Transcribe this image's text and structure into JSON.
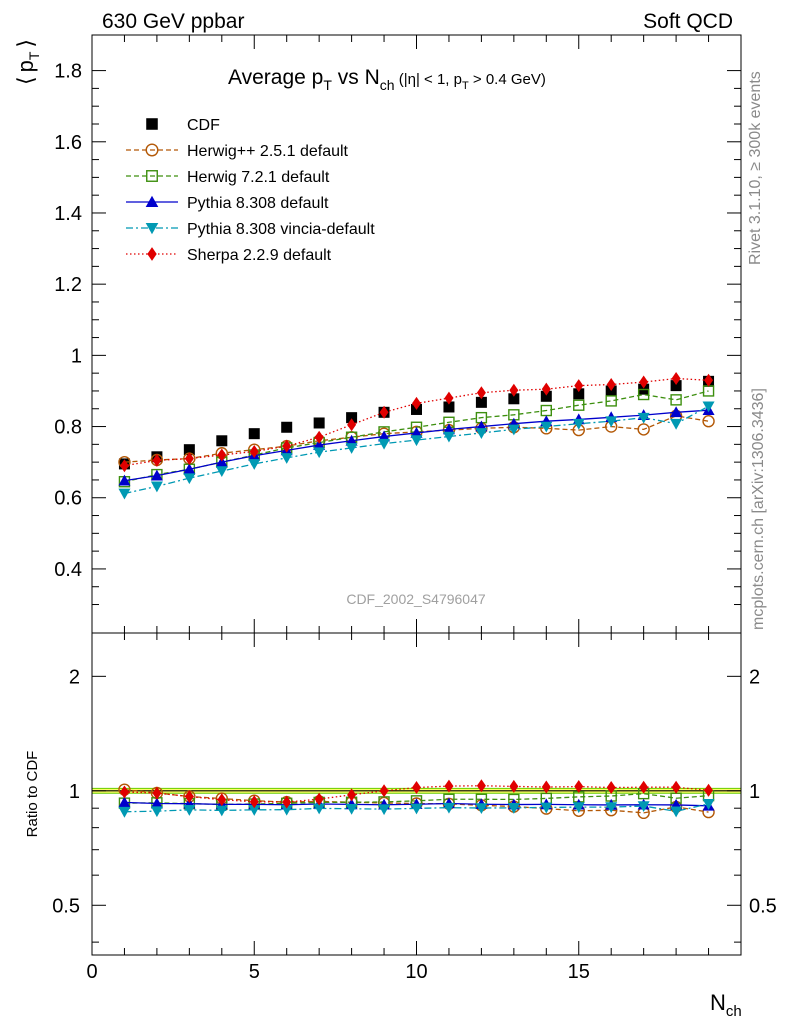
{
  "header": {
    "left": "630 GeV ppbar",
    "right": "Soft QCD"
  },
  "side_labels": {
    "rivet": "Rivet 3.1.10, ≥ 300k events",
    "mcplots": "mcplots.cern.ch [arXiv:1306.3436]"
  },
  "watermark": "CDF_2002_S4796047",
  "chart_data": [
    {
      "type": "scatter",
      "panel": "main",
      "title": "Average p_T vs N_ch (|η| < 1, p_T > 0.4 GeV)",
      "title_parts": {
        "a": "Average p",
        "a_sub": "T",
        "b": " vs N",
        "b_sub": "ch",
        "c": " (|η| < 1, p",
        "c_sub": "T",
        "d": " > 0.4 GeV)"
      },
      "ylabel": "⟨ p_T ⟩",
      "ylabel_parts": {
        "open": "⟨",
        "p": "p",
        "sub": "T",
        "close": "⟩"
      },
      "xlim": [
        0,
        20
      ],
      "ylim": [
        0.22,
        1.9
      ],
      "yticks": [
        0.4,
        0.6,
        0.8,
        1,
        1.2,
        1.4,
        1.6,
        1.8
      ],
      "ytick_labels": [
        "0.4",
        "0.6",
        "0.8",
        "1",
        "1.2",
        "1.4",
        "1.6",
        "1.8"
      ],
      "x": [
        1,
        2,
        3,
        4,
        5,
        6,
        7,
        8,
        9,
        10,
        11,
        12,
        13,
        14,
        15,
        16,
        17,
        18,
        19
      ],
      "legend_position": "top-left",
      "series": [
        {
          "name": "CDF",
          "color": "#000000",
          "marker": "square-filled",
          "line": "none",
          "values": [
            0.695,
            0.715,
            0.735,
            0.76,
            0.78,
            0.798,
            0.81,
            0.825,
            0.84,
            0.848,
            0.855,
            0.868,
            0.878,
            0.885,
            0.892,
            0.9,
            0.905,
            0.915,
            0.927
          ]
        },
        {
          "name": "Herwig++ 2.5.1 default",
          "color": "#b35806",
          "marker": "circle-open",
          "line": "dashed",
          "values": [
            0.7,
            0.706,
            0.71,
            0.725,
            0.735,
            0.745,
            0.76,
            0.77,
            0.78,
            0.785,
            0.79,
            0.795,
            0.798,
            0.795,
            0.79,
            0.8,
            0.792,
            0.83,
            0.815
          ]
        },
        {
          "name": "Herwig 7.2.1 default",
          "color": "#3d8f0f",
          "marker": "square-open",
          "line": "dashed",
          "values": [
            0.645,
            0.665,
            0.68,
            0.7,
            0.72,
            0.74,
            0.755,
            0.77,
            0.785,
            0.798,
            0.812,
            0.825,
            0.833,
            0.845,
            0.86,
            0.872,
            0.89,
            0.875,
            0.9
          ]
        },
        {
          "name": "Pythia 8.308 default",
          "color": "#0000cc",
          "marker": "triangle-up",
          "line": "solid",
          "values": [
            0.648,
            0.662,
            0.68,
            0.7,
            0.718,
            0.733,
            0.748,
            0.76,
            0.772,
            0.782,
            0.792,
            0.8,
            0.808,
            0.815,
            0.82,
            0.826,
            0.832,
            0.84,
            0.846
          ]
        },
        {
          "name": "Pythia 8.308 vincia-default",
          "color": "#0099b3",
          "marker": "triangle-down",
          "line": "dashdot",
          "values": [
            0.612,
            0.632,
            0.655,
            0.675,
            0.695,
            0.712,
            0.728,
            0.74,
            0.752,
            0.762,
            0.772,
            0.782,
            0.792,
            0.8,
            0.808,
            0.815,
            0.825,
            0.808,
            0.857
          ]
        },
        {
          "name": "Sherpa 2.2.9 default",
          "color": "#e00000",
          "marker": "diamond",
          "line": "dotted",
          "values": [
            0.69,
            0.705,
            0.71,
            0.72,
            0.73,
            0.745,
            0.77,
            0.805,
            0.84,
            0.865,
            0.88,
            0.895,
            0.902,
            0.905,
            0.915,
            0.918,
            0.925,
            0.935,
            0.93
          ]
        }
      ]
    },
    {
      "type": "scatter",
      "panel": "ratio",
      "ylabel": "Ratio to CDF",
      "xlabel": "N_ch",
      "xlabel_parts": {
        "main": "N",
        "sub": "ch"
      },
      "y_scale": "log",
      "xlim": [
        0,
        20
      ],
      "ylim": [
        0.37,
        2.6
      ],
      "xticks": [
        0,
        5,
        10,
        15
      ],
      "xtick_labels": [
        "0",
        "5",
        "10",
        "15"
      ],
      "yticks": [
        0.5,
        1,
        2
      ],
      "ytick_labels": [
        "0.5",
        "1",
        "2"
      ],
      "x": [
        1,
        2,
        3,
        4,
        5,
        6,
        7,
        8,
        9,
        10,
        11,
        12,
        13,
        14,
        15,
        16,
        17,
        18,
        19
      ],
      "band": {
        "color": "#ffff66",
        "edge": "#66cc00",
        "lower": 0.985,
        "upper": 1.015
      },
      "series": [
        {
          "name": "Herwig++ 2.5.1 default",
          "color": "#b35806",
          "marker": "circle-open",
          "line": "dashed",
          "values": [
            1.007,
            0.987,
            0.966,
            0.954,
            0.942,
            0.934,
            0.938,
            0.933,
            0.929,
            0.926,
            0.924,
            0.916,
            0.909,
            0.898,
            0.886,
            0.889,
            0.875,
            0.907,
            0.879
          ]
        },
        {
          "name": "Herwig 7.2.1 default",
          "color": "#3d8f0f",
          "marker": "square-open",
          "line": "dashed",
          "values": [
            0.928,
            0.93,
            0.925,
            0.921,
            0.923,
            0.927,
            0.932,
            0.933,
            0.935,
            0.941,
            0.95,
            0.95,
            0.949,
            0.955,
            0.964,
            0.969,
            0.983,
            0.956,
            0.971
          ]
        },
        {
          "name": "Pythia 8.308 default",
          "color": "#0000cc",
          "marker": "triangle-up",
          "line": "solid",
          "values": [
            0.932,
            0.926,
            0.925,
            0.921,
            0.921,
            0.919,
            0.923,
            0.921,
            0.919,
            0.922,
            0.926,
            0.922,
            0.92,
            0.921,
            0.919,
            0.918,
            0.919,
            0.918,
            0.913
          ]
        },
        {
          "name": "Pythia 8.308 vincia-default",
          "color": "#0099b3",
          "marker": "triangle-down",
          "line": "dashdot",
          "values": [
            0.881,
            0.884,
            0.891,
            0.888,
            0.891,
            0.892,
            0.899,
            0.897,
            0.895,
            0.899,
            0.903,
            0.901,
            0.902,
            0.904,
            0.906,
            0.906,
            0.912,
            0.883,
            0.924
          ]
        },
        {
          "name": "Sherpa 2.2.9 default",
          "color": "#e00000",
          "marker": "diamond",
          "line": "dotted",
          "values": [
            0.993,
            0.986,
            0.966,
            0.947,
            0.936,
            0.934,
            0.951,
            0.976,
            1.0,
            1.02,
            1.029,
            1.031,
            1.027,
            1.023,
            1.026,
            1.02,
            1.022,
            1.022,
            1.003
          ]
        }
      ]
    }
  ]
}
